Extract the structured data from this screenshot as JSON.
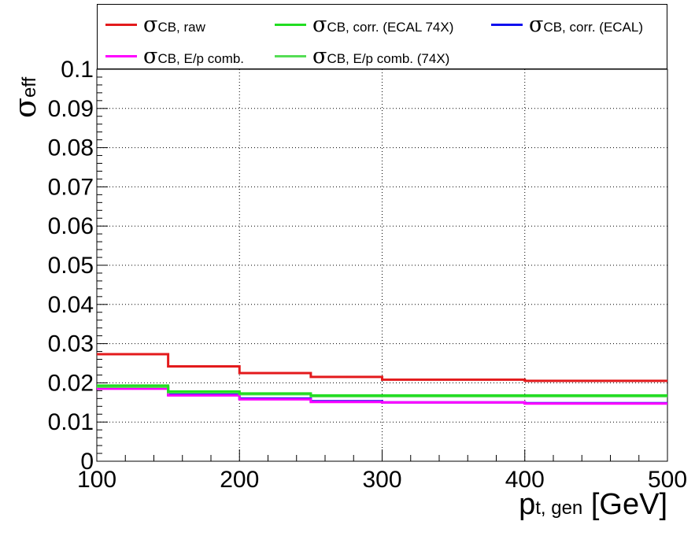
{
  "chart_data": {
    "type": "line",
    "title": "",
    "xlabel": {
      "main": "p",
      "sub": "t, gen",
      "unit": "[GeV]"
    },
    "ylabel": {
      "main": "σ",
      "sub": "eff"
    },
    "xlim": [
      100,
      500
    ],
    "ylim": [
      0,
      0.1
    ],
    "grid": true,
    "legend_position": "top",
    "x_bin_edges": [
      100,
      150,
      200,
      250,
      300,
      400,
      500
    ],
    "x_ticks": [
      "100",
      "200",
      "300",
      "400",
      "500"
    ],
    "y_ticks": [
      "0",
      "0.01",
      "0.02",
      "0.03",
      "0.04",
      "0.05",
      "0.06",
      "0.07",
      "0.08",
      "0.09",
      "0.1"
    ],
    "series": [
      {
        "name": "σCB, raw",
        "symbol": "σ",
        "sub": "CB, raw",
        "color": "#e31a1c",
        "values": [
          0.0273,
          0.0242,
          0.0225,
          0.0215,
          0.0208,
          0.0205
        ]
      },
      {
        "name": "σCB, corr. (ECAL 74X)",
        "symbol": "σ",
        "sub": "CB, corr. (ECAL 74X)",
        "color": "#22dd22",
        "values": [
          0.0193,
          0.0178,
          0.0173,
          0.0168,
          0.0168,
          0.0168
        ]
      },
      {
        "name": "σCB, corr. (ECAL)",
        "symbol": "σ",
        "sub": "CB, corr. (ECAL)",
        "color": "#1010ee",
        "values": [
          0.0188,
          0.017,
          0.016,
          0.0153,
          0.015,
          0.0148
        ]
      },
      {
        "name": "σCB, E/p comb.",
        "symbol": "σ",
        "sub": "CB, E/p comb.",
        "color": "#ff00ff",
        "values": [
          0.0185,
          0.0168,
          0.0158,
          0.0151,
          0.015,
          0.0147
        ]
      },
      {
        "name": "σCB, E/p comb. (74X)",
        "symbol": "σ",
        "sub": "CB, E/p comb. (74X)",
        "color": "#55dd55",
        "values": [
          0.019,
          0.0176,
          0.0171,
          0.0166,
          0.0166,
          0.0166
        ]
      }
    ]
  }
}
